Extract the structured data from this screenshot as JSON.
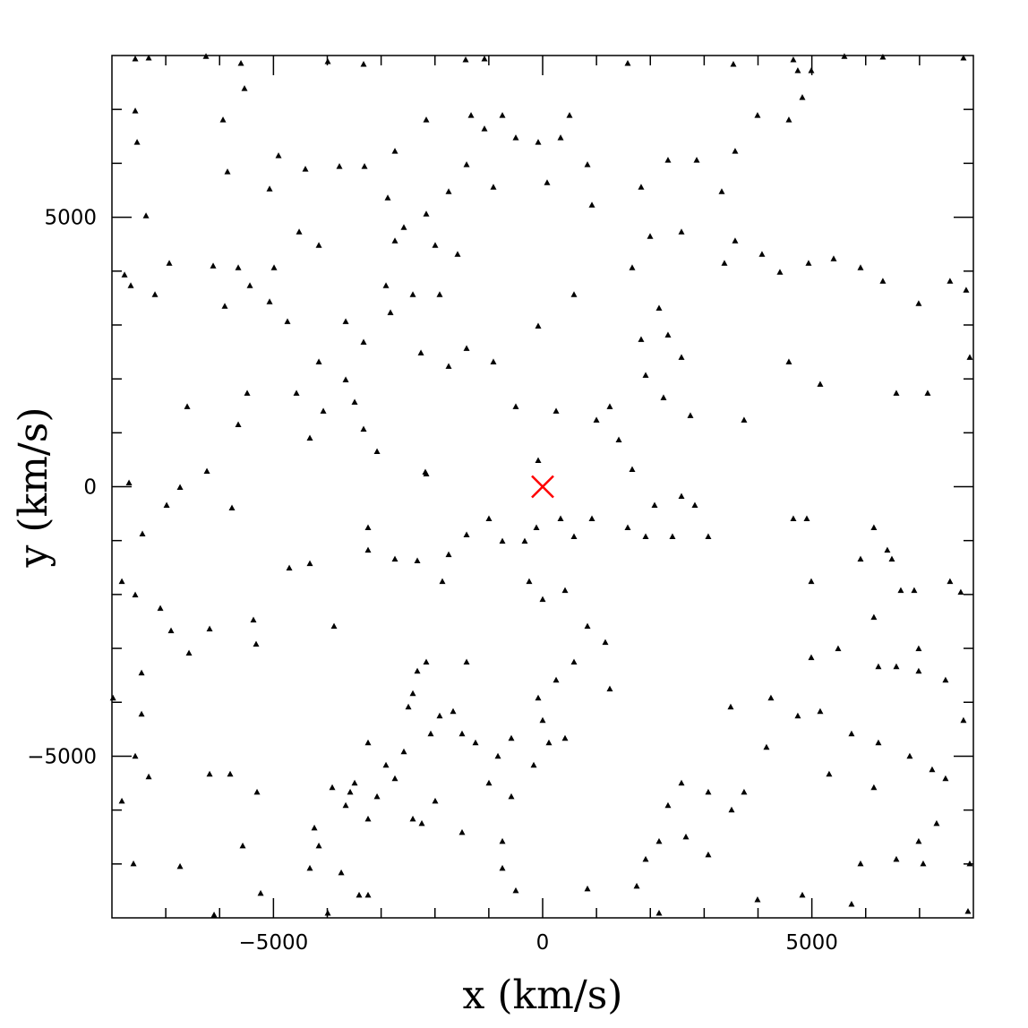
{
  "chart_data": {
    "type": "scatter",
    "xlabel": "x (km/s)",
    "ylabel": "y (km/s)",
    "xlim": [
      -8000,
      8000
    ],
    "ylim": [
      -8000,
      8000
    ],
    "xticks": [
      {
        "value": -5000,
        "label": "−5000"
      },
      0,
      5000
    ],
    "yticks": [
      {
        "value": -5000,
        "label": "−5000"
      },
      0,
      5000
    ],
    "xminorticks": [
      -7000,
      -6000,
      -4000,
      -3000,
      -2000,
      -1000,
      1000,
      2000,
      3000,
      4000,
      6000,
      7000
    ],
    "yminorticks": [
      -7000,
      -6000,
      -4000,
      -3000,
      -2000,
      -1000,
      1000,
      2000,
      3000,
      4000,
      6000,
      7000
    ],
    "series": [
      {
        "color": "#000000",
        "marker": "triangle",
        "x": [
          -7567,
          -7317,
          -6253,
          -5604,
          -3991,
          -3326,
          -1430,
          -1081,
          1580,
          3542,
          4656,
          5604,
          6319,
          7816,
          -7567,
          -7533,
          -5538,
          -5937,
          -4906,
          -5072,
          -4407,
          -3775,
          -3309,
          -5854,
          -7367,
          -7766,
          -7650,
          -7201,
          -6935,
          -6120,
          -5654,
          -5438,
          -4989,
          -4523,
          -4157,
          -5072,
          -4740,
          -5904,
          -2910,
          -2827,
          -2411,
          -1913,
          -3658,
          -3326,
          -2261,
          -1746,
          -1413,
          -4157,
          -4573,
          -3658,
          -3492,
          -3326,
          -4074,
          -4324,
          -5654,
          -6602,
          -5488,
          -3076,
          -2162,
          -7683,
          -6735,
          -6236,
          -5771,
          -6984,
          -7434,
          -7816,
          -7567,
          -7101,
          -6902,
          -6569,
          -6186,
          -7450,
          -7450,
          -7980,
          -7567,
          -7317,
          -7816,
          -7600,
          -6735,
          -6103,
          -5238,
          -5571,
          -6186,
          -5804,
          -5305,
          -5322,
          -5372,
          -4706,
          -4324,
          -3875,
          -3243,
          -3243,
          -2744,
          -2328,
          -1863,
          -1746,
          -1413,
          -998,
          -748,
          -333,
          -116,
          333,
          582,
          915,
          1580,
          1913,
          2411,
          3076,
          2578,
          2827,
          2079,
          1663,
          1414,
          1247,
          999,
          1913,
          2245,
          2744,
          1829,
          2328,
          2578,
          2162,
          1663,
          1996,
          2578,
          3575,
          3376,
          4074,
          4407,
          4939,
          5405,
          5904,
          6319,
          6984,
          7566,
          7866,
          7933,
          7151,
          6569,
          5155,
          4573,
          3741,
          3575,
          3326,
          3991,
          4573,
          4823,
          4739,
          4989,
          2328,
          2861,
          1829,
          915,
          832,
          333,
          -83,
          -499,
          -748,
          -1081,
          -1330,
          -1413,
          -1746,
          -2162,
          -2578,
          -2744,
          -1996,
          -1580,
          -915,
          83,
          499,
          -2162,
          -2744,
          -2877,
          582,
          -83,
          -915,
          -499,
          250,
          -83,
          -2179,
          -250,
          0,
          416,
          832,
          1164,
          1247,
          582,
          250,
          -83,
          0,
          116,
          416,
          -166,
          -582,
          -831,
          -998,
          -582,
          -748,
          -748,
          832,
          -499,
          -1413,
          -1663,
          -1913,
          -1497,
          -1247,
          -2079,
          -2411,
          -2494,
          -2162,
          -2328,
          -2578,
          -2910,
          -3243,
          -3492,
          -3908,
          -3575,
          -3076,
          -2744,
          -3243,
          -3658,
          -4240,
          -4157,
          -4324,
          -3741,
          -3409,
          -3243,
          -3991,
          -2411,
          -2245,
          -1996,
          -1497,
          2328,
          2162,
          2578,
          3076,
          2661,
          3076,
          1913,
          1747,
          2162,
          3509,
          3741,
          4157,
          4739,
          5155,
          5321,
          5737,
          6236,
          6152,
          5904,
          6569,
          6984,
          7068,
          7317,
          7483,
          7234,
          6818,
          7816,
          7483,
          6984,
          6569,
          6236,
          6984,
          6152,
          6652,
          6901,
          7566,
          7766,
          6486,
          6402,
          6152,
          5904,
          4906,
          4656,
          4989,
          5488,
          4989,
          4240,
          3492,
          7933,
          7900,
          3991,
          4823,
          5737
        ],
        "y": [
          7933,
          7950,
          7980,
          7850,
          7883,
          7833,
          7916,
          7933,
          7850,
          7833,
          7916,
          7980,
          7966,
          7950,
          6968,
          6386,
          7384,
          6802,
          6137,
          5521,
          5887,
          5937,
          5937,
          5837,
          5022,
          3925,
          3725,
          3559,
          4141,
          4091,
          4058,
          3725,
          4058,
          4723,
          4473,
          3426,
          3060,
          3343,
          3725,
          3226,
          3559,
          3559,
          3060,
          2677,
          2478,
          2228,
          2561,
          2311,
          1730,
          1979,
          1563,
          1064,
          1397,
          898,
          1147,
          1480,
          1730,
          649,
          233,
          67,
          -17,
          283,
          -399,
          -349,
          -881,
          -1763,
          -2012,
          -2262,
          -2677,
          -3093,
          -2644,
          -3459,
          -4224,
          -3925,
          -5005,
          -5388,
          -5837,
          -7001,
          -7051,
          -7950,
          -7550,
          -6669,
          -5338,
          -5338,
          -5671,
          -2927,
          -2478,
          -1513,
          -1430,
          -2594,
          -765,
          -1181,
          -1347,
          -1380,
          -1763,
          -1264,
          -898,
          -599,
          -1015,
          -1015,
          -765,
          -599,
          -931,
          -599,
          -765,
          -931,
          -931,
          -931,
          -183,
          -349,
          -349,
          316,
          865,
          1480,
          1231,
          2062,
          1646,
          1314,
          2727,
          2811,
          2395,
          3309,
          4058,
          4640,
          4723,
          4557,
          4141,
          4307,
          3975,
          4141,
          4224,
          4058,
          3808,
          3393,
          3808,
          3642,
          2395,
          1730,
          1730,
          1896,
          2311,
          1231,
          6220,
          5471,
          6885,
          6802,
          7217,
          7716,
          7716,
          6053,
          6053,
          5554,
          5222,
          5970,
          6469,
          6386,
          6469,
          6885,
          6636,
          6885,
          5970,
          5471,
          5055,
          4806,
          4557,
          4474,
          4307,
          5554,
          5637,
          6885,
          6802,
          6220,
          5354,
          3559,
          2977,
          2311,
          1480,
          1397,
          482,
          266,
          -1763,
          -2095,
          -1929,
          -2594,
          -2894,
          -3758,
          -3259,
          -3592,
          -3925,
          -4340,
          -4756,
          -4673,
          -5172,
          -4673,
          -5005,
          -5504,
          -5754,
          -6586,
          -7084,
          -7467,
          -7500,
          -3259,
          -4174,
          -4257,
          -4590,
          -4756,
          -4590,
          -3842,
          -4091,
          -3259,
          -3426,
          -4923,
          -5172,
          -4756,
          -5504,
          -5587,
          -5671,
          -5754,
          -5421,
          -6170,
          -5920,
          -6336,
          -6669,
          -7084,
          -7167,
          -7583,
          -7583,
          -7916,
          -6170,
          -6253,
          -5837,
          -6419,
          -5920,
          -6586,
          -5504,
          -5671,
          -6502,
          -6835,
          -6918,
          -7416,
          -7916,
          -6003,
          -5671,
          -4839,
          -4257,
          -4174,
          -5338,
          -4590,
          -4756,
          -5587,
          -7001,
          -6919,
          -6586,
          -7001,
          -6253,
          -5421,
          -5254,
          -5005,
          -4340,
          -3592,
          -3426,
          -3343,
          -3343,
          -3010,
          -2428,
          -1929,
          -1929,
          -1763,
          -1962,
          -1347,
          -1181,
          -765,
          -1347,
          -599,
          -599,
          -1763,
          -3010,
          -3176,
          -3925,
          -4091,
          -7001,
          -7883,
          -7667,
          -7583,
          -7750
        ]
      },
      {
        "color": "#ff0000",
        "marker": "x",
        "x": [
          0
        ],
        "y": [
          0
        ]
      }
    ]
  }
}
